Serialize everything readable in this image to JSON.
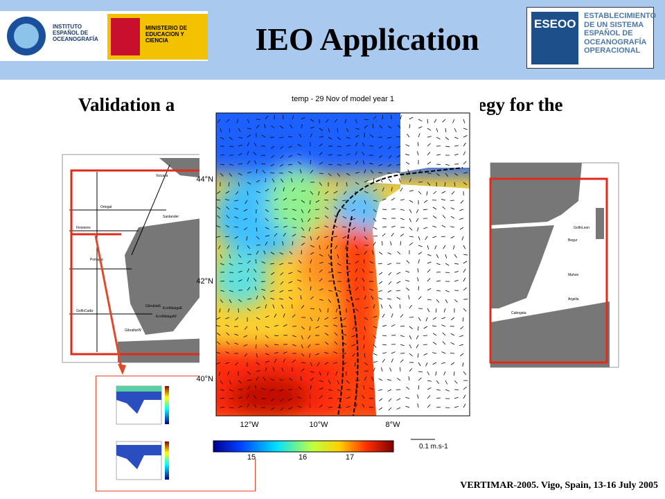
{
  "header": {
    "title": "IEO Application",
    "ieo_logo": "INSTITUTO ESPAÑOL DE OCEANOGRAFÍA",
    "ministry_logo": "MINISTERIO DE EDUCACION Y CIENCIA",
    "eseoo_logo": {
      "acronym": "ESEOO",
      "text": "ESTABLECIMIENTO DE UN SISTEMA ESPAÑOL DE OCEANOGRAFÍA OPERACIONAL"
    }
  },
  "subtitle": {
    "left": "Validation a",
    "right": "egy for the"
  },
  "left_map": {
    "labels": [
      "Vizcaya",
      "Ortegal",
      "Santander",
      "Finisterre",
      "Portugal",
      "GolfoCadiz",
      "GibraltarE",
      "GibraltarW",
      "EcoMalagaW",
      "EcoMalagaE"
    ]
  },
  "right_map": {
    "labels": [
      "GolfoLeon",
      "Begur",
      "Mahon",
      "Argelia",
      "Cabogata"
    ]
  },
  "model_figure": {
    "title": "temp - 29 Nov of model year 1",
    "y_labels": [
      "44°N",
      "42°N",
      "40°N"
    ],
    "x_labels": [
      "12°W",
      "10°W",
      "8°W"
    ],
    "colorbar_labels": [
      "15",
      "16",
      "17"
    ],
    "vector_scale": "0.1 m.s-1"
  },
  "footer": "VERTIMAR-2005. Vigo, Spain, 13-16 July 2005"
}
